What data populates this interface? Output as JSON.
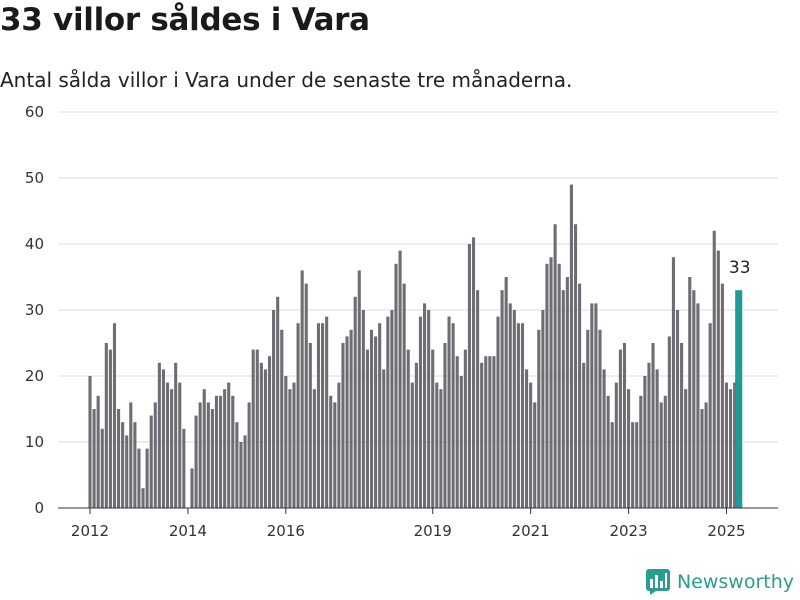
{
  "title": "33 villor såldes i Vara",
  "subtitle": "Antal sålda villor i Vara under de senaste tre månaderna.",
  "logo": {
    "name": "Newsworthy",
    "icon": "newsworthy-logo-icon",
    "color": "#2a9d8f"
  },
  "colors": {
    "bar": "#6e6d74",
    "highlight": "#1f9a96",
    "grid": "#dcdcdc",
    "axis": "#333333"
  },
  "chart_data": {
    "type": "bar",
    "title": "",
    "xlabel": "",
    "ylabel": "",
    "ylim": [
      0,
      60
    ],
    "yticks": [
      0,
      10,
      20,
      30,
      40,
      50,
      60
    ],
    "grid": true,
    "x_start": "2012-01",
    "x_ticks": [
      {
        "label": "2012",
        "month": "2012-01"
      },
      {
        "label": "2014",
        "month": "2014-01"
      },
      {
        "label": "2016",
        "month": "2016-01"
      },
      {
        "label": "2019",
        "month": "2019-01"
      },
      {
        "label": "2021",
        "month": "2021-01"
      },
      {
        "label": "2023",
        "month": "2023-01"
      },
      {
        "label": "2025",
        "month": "2025-01"
      }
    ],
    "values": [
      20,
      15,
      17,
      12,
      25,
      24,
      28,
      15,
      13,
      11,
      16,
      13,
      9,
      3,
      9,
      14,
      16,
      22,
      21,
      19,
      18,
      22,
      19,
      12,
      0,
      6,
      14,
      16,
      18,
      16,
      15,
      17,
      17,
      18,
      19,
      17,
      13,
      10,
      11,
      16,
      24,
      24,
      22,
      21,
      23,
      30,
      32,
      27,
      20,
      18,
      19,
      28,
      36,
      34,
      25,
      18,
      28,
      28,
      29,
      17,
      16,
      19,
      25,
      26,
      27,
      32,
      36,
      30,
      24,
      27,
      26,
      28,
      21,
      29,
      30,
      37,
      39,
      34,
      24,
      19,
      22,
      29,
      31,
      30,
      24,
      19,
      18,
      25,
      29,
      28,
      23,
      20,
      24,
      40,
      41,
      33,
      22,
      23,
      23,
      23,
      29,
      33,
      35,
      31,
      30,
      28,
      28,
      21,
      19,
      16,
      27,
      30,
      37,
      38,
      43,
      37,
      33,
      35,
      49,
      43,
      34,
      22,
      27,
      31,
      31,
      27,
      21,
      17,
      13,
      19,
      24,
      25,
      18,
      13,
      13,
      17,
      20,
      22,
      25,
      21,
      16,
      17,
      26,
      38,
      30,
      25,
      18,
      35,
      33,
      31,
      15,
      16,
      28,
      42,
      39,
      34,
      19,
      18,
      19,
      33
    ],
    "highlight_last": true,
    "annotation": "33"
  }
}
